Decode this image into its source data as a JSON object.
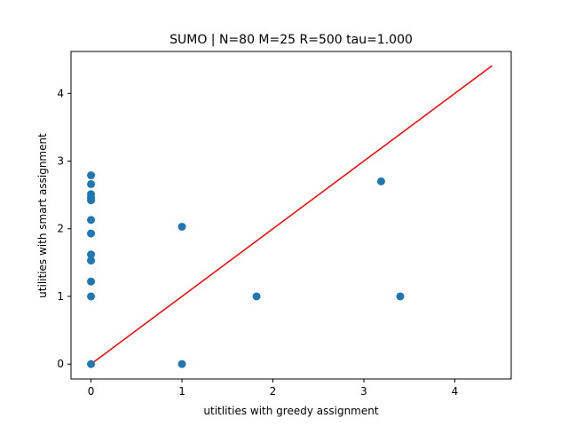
{
  "chart_data": {
    "type": "scatter",
    "title": "SUMO | N=80 M=25 R=500 tau=1.000",
    "xlabel": "utitlities with greedy assignment",
    "ylabel": "utilities with smart assignment",
    "xlim": [
      -0.22,
      4.62
    ],
    "ylim": [
      -0.22,
      4.62
    ],
    "xticks": [
      0,
      1,
      2,
      3,
      4
    ],
    "yticks": [
      0,
      1,
      2,
      3,
      4
    ],
    "grid": false,
    "colors": {
      "points": "#1f77b4",
      "line": "#ff0000"
    },
    "series": [
      {
        "points": [
          [
            0,
            0
          ],
          [
            0,
            1.0
          ],
          [
            0,
            1.22
          ],
          [
            0,
            1.53
          ],
          [
            0,
            1.62
          ],
          [
            0,
            1.93
          ],
          [
            0,
            2.13
          ],
          [
            0,
            2.42
          ],
          [
            0,
            2.46
          ],
          [
            0,
            2.51
          ],
          [
            0,
            2.66
          ],
          [
            0,
            2.79
          ],
          [
            1.0,
            2.03
          ],
          [
            1.0,
            0
          ],
          [
            1.82,
            1.0
          ],
          [
            3.19,
            2.7
          ],
          [
            3.4,
            1.0
          ]
        ]
      }
    ],
    "reference_line": {
      "x": [
        0,
        4.41
      ],
      "y": [
        0,
        4.41
      ]
    }
  }
}
